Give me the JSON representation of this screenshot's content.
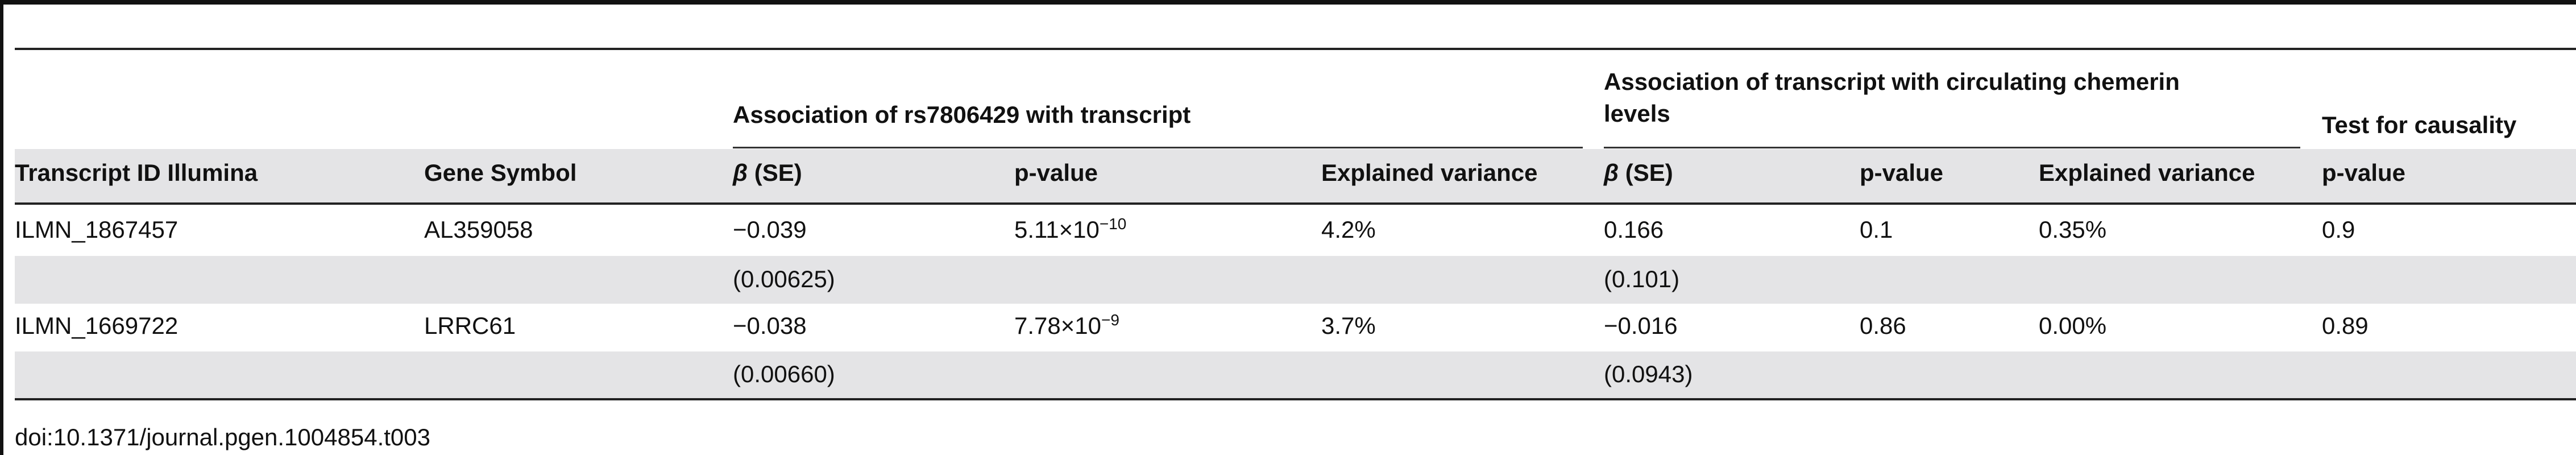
{
  "table": {
    "group_headers": {
      "assoc_rs": "Association of rs7806429 with transcript",
      "assoc_transcript_line1": "Association of transcript with circulating chemerin",
      "assoc_transcript_line2": "levels",
      "causality": "Test for causality"
    },
    "column_headers": {
      "transcript_id": "Transcript ID Illumina",
      "gene_symbol": "Gene Symbol",
      "beta_symbol": "β",
      "beta_se_suffix": " (SE)",
      "pvalue": "p-value",
      "explained_variance": "Explained variance",
      "beta2_symbol": "β",
      "beta2_se_suffix": " (SE)",
      "pvalue2": "p-value",
      "explained_variance2": "Explained variance",
      "pvalue3": "p-value"
    },
    "rows": [
      {
        "transcript_id": "ILMN_1867457",
        "gene_symbol": "AL359058",
        "beta": "−0.039",
        "se": "(0.00625)",
        "pvalue_base": "5.11×10",
        "pvalue_exp": "−10",
        "explained_variance": "4.2%",
        "beta2": "0.166",
        "se2": "(0.101)",
        "pvalue2": "0.1",
        "explained_variance2": "0.35%",
        "causality_p": "0.9"
      },
      {
        "transcript_id": "ILMN_1669722",
        "gene_symbol": "LRRC61",
        "beta": "−0.038",
        "se": "(0.00660)",
        "pvalue_base": "7.78×10",
        "pvalue_exp": "−9",
        "explained_variance": "3.7%",
        "beta2": "−0.016",
        "se2": "(0.0943)",
        "pvalue2": "0.86",
        "explained_variance2": "0.00%",
        "causality_p": "0.89"
      }
    ]
  },
  "footer": {
    "doi": "doi:10.1371/journal.pgen.1004854.t003"
  }
}
